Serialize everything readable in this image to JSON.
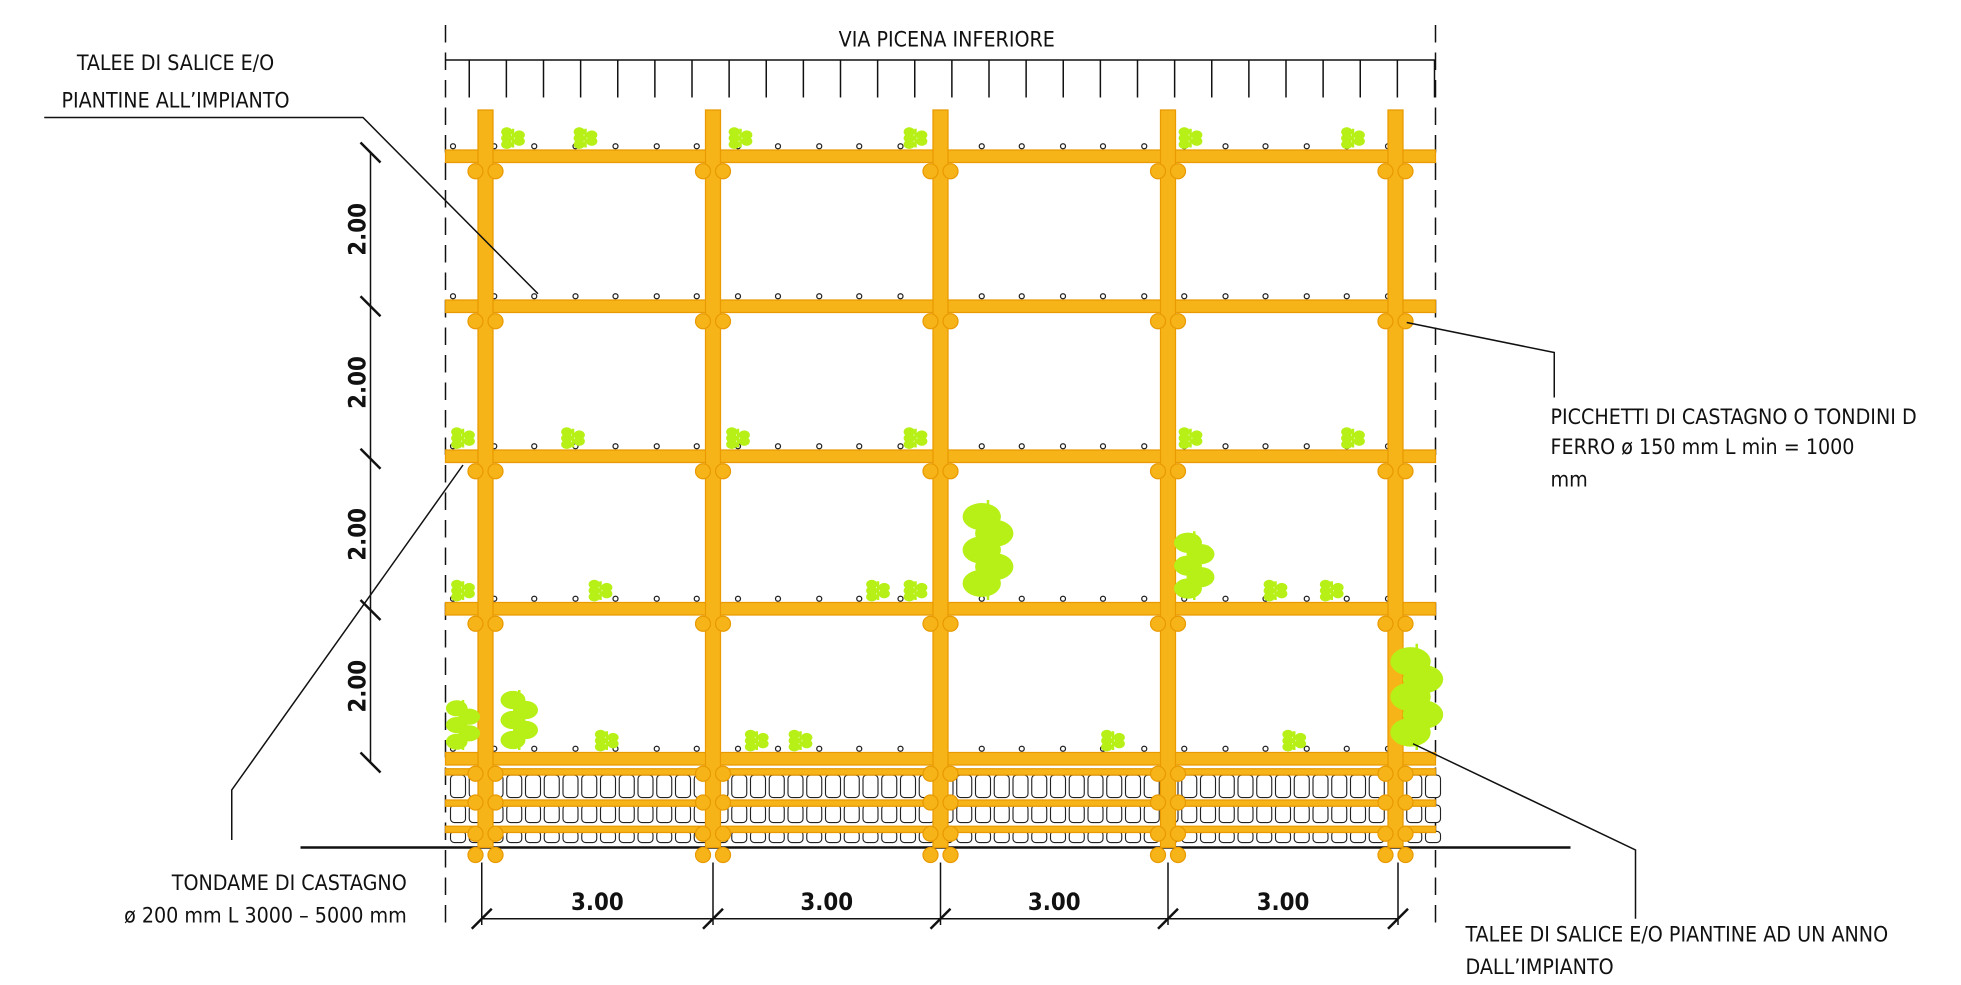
{
  "top_label": "VIA PICENA INFERIORE",
  "annotations": [
    {
      "lines": [
        "TALEE DI SALICE E/O",
        "PIANTINE ALL’IMPIANTO"
      ]
    },
    {
      "lines": [
        "PICCHETTI DI CASTAGNO O TONDINI D",
        "FERRO ø 150 mm L min = 1000",
        "mm"
      ]
    },
    {
      "lines": [
        "TONDAME DI CASTAGNO",
        "ø 200 mm L 3000 – 5000 mm"
      ]
    },
    {
      "lines": [
        "TALEE DI SALICE E/O PIANTINE AD UN ANNO",
        "DALL’IMPIANTO"
      ]
    }
  ],
  "vertical_dimensions": [
    "2.00",
    "2.00",
    "2.00",
    "2.00"
  ],
  "horizontal_dimensions": [
    "3.00",
    "3.00",
    "3.00",
    "3.00"
  ]
}
